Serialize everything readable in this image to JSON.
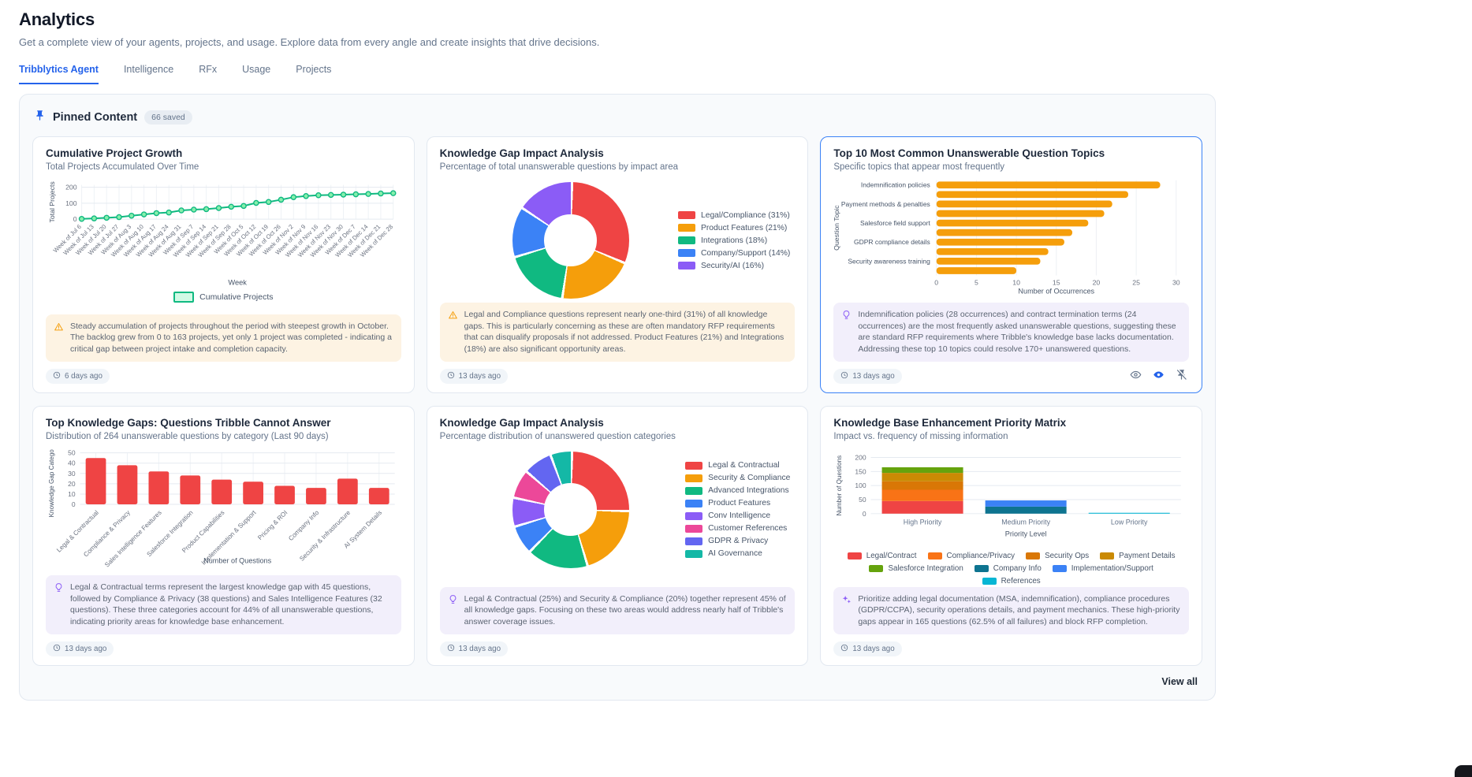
{
  "page": {
    "title": "Analytics",
    "subtitle": "Get a complete view of your agents, projects, and usage. Explore data from every angle and create insights that drive decisions.",
    "tabs": [
      {
        "label": "Tribblytics Agent",
        "active": true
      },
      {
        "label": "Intelligence",
        "active": false
      },
      {
        "label": "RFx",
        "active": false
      },
      {
        "label": "Usage",
        "active": false
      },
      {
        "label": "Projects",
        "active": false
      }
    ],
    "pinned": {
      "title": "Pinned Content",
      "badge": "66 saved",
      "view_all": "View all"
    }
  },
  "cards": [
    {
      "title": "Cumulative Project Growth",
      "subtitle": "Total Projects Accumulated Over Time",
      "insight": {
        "icon": "warning-icon",
        "text": "Steady accumulation of projects throughout the period with steepest growth in October. The backlog grew from 0 to 163 projects, yet only 1 project was completed - indicating a critical gap between project intake and completion capacity."
      },
      "timestamp": "6 days ago"
    },
    {
      "title": "Knowledge Gap Impact Analysis",
      "subtitle": "Percentage of total unanswerable questions by impact area",
      "insight": {
        "icon": "warning-icon",
        "text": "Legal and Compliance questions represent nearly one-third (31%) of all knowledge gaps. This is particularly concerning as these are often mandatory RFP requirements that can disqualify proposals if not addressed. Product Features (21%) and Integrations (18%) are also significant opportunity areas."
      },
      "timestamp": "13 days ago"
    },
    {
      "title": "Top 10 Most Common Unanswerable Question Topics",
      "subtitle": "Specific topics that appear most frequently",
      "selected": true,
      "insight": {
        "icon": "lightbulb-icon",
        "text": "Indemnification policies (28 occurrences) and contract termination terms (24 occurrences) are the most frequently asked unanswerable questions, suggesting these are standard RFP requirements where Tribble's knowledge base lacks documentation. Addressing these top 10 topics could resolve 170+ unanswered questions."
      },
      "timestamp": "13 days ago"
    },
    {
      "title": "Top Knowledge Gaps: Questions Tribble Cannot Answer",
      "subtitle": "Distribution of 264 unanswerable questions by category (Last 90 days)",
      "insight": {
        "icon": "lightbulb-icon",
        "text": "Legal & Contractual terms represent the largest knowledge gap with 45 questions, followed by Compliance & Privacy (38 questions) and Sales Intelligence Features (32 questions). These three categories account for 44% of all unanswerable questions, indicating priority areas for knowledge base enhancement."
      },
      "timestamp": "13 days ago"
    },
    {
      "title": "Knowledge Gap Impact Analysis",
      "subtitle": "Percentage distribution of unanswered question categories",
      "insight": {
        "icon": "lightbulb-icon",
        "text": "Legal & Contractual (25%) and Security & Compliance (20%) together represent 45% of all knowledge gaps. Focusing on these two areas would address nearly half of Tribble's answer coverage issues."
      },
      "timestamp": "13 days ago"
    },
    {
      "title": "Knowledge Base Enhancement Priority Matrix",
      "subtitle": "Impact vs. frequency of missing information",
      "insight": {
        "icon": "sparkles-icon",
        "text": "Prioritize adding legal documentation (MSA, indemnification), compliance procedures (GDPR/CCPA), security operations details, and payment mechanics. These high-priority gaps appear in 165 questions (62.5% of all failures) and block RFP completion."
      },
      "timestamp": "13 days ago"
    }
  ],
  "chart_data": [
    {
      "type": "line",
      "title": "Cumulative Project Growth",
      "x": [
        "Week of Jul 6",
        "Week of Jul 13",
        "Week of Jul 20",
        "Week of Jul 27",
        "Week of Aug 3",
        "Week of Aug 10",
        "Week of Aug 17",
        "Week of Aug 24",
        "Week of Aug 31",
        "Week of Sep 7",
        "Week of Sep 14",
        "Week of Sep 21",
        "Week of Sep 28",
        "Week of Oct 5",
        "Week of Oct 12",
        "Week of Oct 19",
        "Week of Oct 26",
        "Week of Nov 2",
        "Week of Nov 9",
        "Week of Nov 16",
        "Week of Nov 23",
        "Week of Nov 30",
        "Week of Dec 7",
        "Week of Dec 14",
        "Week of Dec 21",
        "Week of Dec 28"
      ],
      "values": [
        2,
        5,
        9,
        13,
        22,
        30,
        38,
        42,
        55,
        60,
        63,
        70,
        78,
        83,
        102,
        108,
        122,
        138,
        145,
        150,
        152,
        154,
        156,
        158,
        161,
        163
      ],
      "xlabel": "Week",
      "ylabel": "Total Projects",
      "yticks": [
        0,
        100,
        200
      ],
      "ylim": [
        0,
        215
      ],
      "legend": [
        "Cumulative Projects"
      ],
      "line_color": "#10b981",
      "marker_fill": "#86efac"
    },
    {
      "type": "pie",
      "donut": true,
      "labels": [
        "Legal/Compliance (31%)",
        "Product Features (21%)",
        "Integrations (18%)",
        "Company/Support (14%)",
        "Security/AI (16%)"
      ],
      "values": [
        31,
        21,
        18,
        14,
        16
      ],
      "colors": [
        "#ef4444",
        "#f59e0b",
        "#10b981",
        "#3b82f6",
        "#8b5cf6"
      ],
      "legend_position": "right"
    },
    {
      "type": "bar",
      "orientation": "horizontal",
      "categories": [
        "Indemnification policies",
        "",
        "Payment methods & penalties",
        "",
        "Salesforce field support",
        "",
        "GDPR compliance details",
        "",
        "Security awareness training",
        ""
      ],
      "values": [
        28,
        24,
        22,
        21,
        19,
        17,
        16,
        14,
        13,
        10
      ],
      "xticks": [
        0,
        5,
        10,
        15,
        20,
        25,
        30
      ],
      "xlim": [
        0,
        30
      ],
      "xlabel": "Number of Occurrences",
      "ylabel": "Question Topic",
      "bar_color": "#f59e0b"
    },
    {
      "type": "bar",
      "orientation": "vertical",
      "categories": [
        "Legal & Contractual",
        "Compliance & Privacy",
        "Sales Intelligence Features",
        "Salesforce Integration",
        "Product Capabilities",
        "Implementation & Support",
        "Pricing & ROI",
        "Company Info",
        "Security & Infrastructure",
        "AI System Details"
      ],
      "values": [
        45,
        38,
        32,
        28,
        24,
        22,
        18,
        16,
        25,
        16
      ],
      "yticks": [
        0,
        10,
        20,
        30,
        40,
        50
      ],
      "ylim": [
        0,
        50
      ],
      "xlabel": "Number of Questions",
      "ylabel": "Knowledge Gap Catego",
      "bar_color": "#ef4444"
    },
    {
      "type": "pie",
      "donut": true,
      "labels": [
        "Legal & Contractual",
        "Security & Compliance",
        "Advanced Integrations",
        "Product Features",
        "Conv Intelligence",
        "Customer References",
        "GDPR & Privacy",
        "AI Governance"
      ],
      "values": [
        25,
        20,
        17,
        8,
        8,
        8,
        8,
        6
      ],
      "colors": [
        "#ef4444",
        "#f59e0b",
        "#10b981",
        "#3b82f6",
        "#8b5cf6",
        "#ec4899",
        "#6366f1",
        "#14b8a6"
      ],
      "legend_position": "right"
    },
    {
      "type": "stacked-bar",
      "categories": [
        "High Priority",
        "Medium Priority",
        "Low Priority"
      ],
      "series": [
        {
          "name": "Legal/Contract",
          "color": "#ef4444",
          "values": [
            45,
            0,
            0
          ]
        },
        {
          "name": "Compliance/Privacy",
          "color": "#f97316",
          "values": [
            40,
            0,
            0
          ]
        },
        {
          "name": "Security Ops",
          "color": "#d97706",
          "values": [
            30,
            0,
            0
          ]
        },
        {
          "name": "Payment Details",
          "color": "#ca8a04",
          "values": [
            30,
            0,
            0
          ]
        },
        {
          "name": "Salesforce Integration",
          "color": "#65a30d",
          "values": [
            20,
            0,
            0
          ]
        },
        {
          "name": "Company Info",
          "color": "#0e7490",
          "values": [
            0,
            25,
            0
          ]
        },
        {
          "name": "Implementation/Support",
          "color": "#3b82f6",
          "values": [
            0,
            22,
            0
          ]
        },
        {
          "name": "References",
          "color": "#06b6d4",
          "values": [
            0,
            0,
            3
          ]
        }
      ],
      "yticks": [
        0,
        50,
        100,
        150,
        200
      ],
      "ylim": [
        0,
        200
      ],
      "xlabel": "Priority Level",
      "ylabel": "Number of Questions",
      "legend_position": "bottom"
    }
  ]
}
